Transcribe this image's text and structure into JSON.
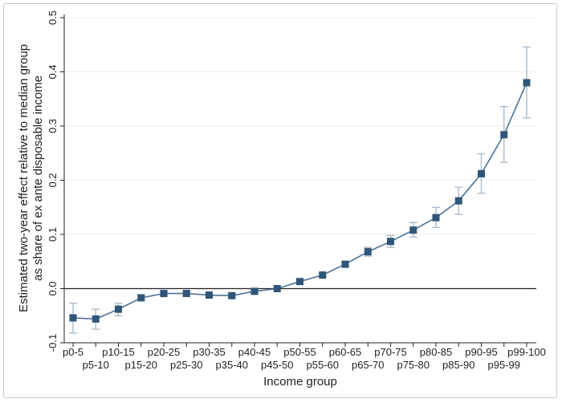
{
  "chart_data": {
    "type": "line",
    "ylabel_line1": "Estimated two-year effect relative to median group",
    "ylabel_line2": "as share of ex ante disposable income",
    "xlabel": "Income group",
    "ylim": [
      -0.1,
      0.5
    ],
    "yticks": [
      "-0.1",
      "0.0",
      "0.1",
      "0.2",
      "0.3",
      "0.4",
      "0.5"
    ],
    "ytick_values": [
      -0.1,
      0.0,
      0.1,
      0.2,
      0.3,
      0.4,
      0.5
    ],
    "grid": "horizontal",
    "reference_line": 0,
    "colors": {
      "series": "#4a7196",
      "marker": "#2f5678",
      "error_bar": "#a9bccd",
      "grid": "#e9eef2",
      "axis": "#222222"
    },
    "categories": [
      "p0-5",
      "p5-10",
      "p10-15",
      "p15-20",
      "p20-25",
      "p25-30",
      "p30-35",
      "p35-40",
      "p40-45",
      "p45-50",
      "p50-55",
      "p55-60",
      "p60-65",
      "p65-70",
      "p70-75",
      "p75-80",
      "p80-85",
      "p85-90",
      "p90-95",
      "p95-99",
      "p99-100"
    ],
    "values": [
      -0.054,
      -0.056,
      -0.038,
      -0.017,
      -0.009,
      -0.009,
      -0.012,
      -0.013,
      -0.005,
      0.0,
      0.013,
      0.025,
      0.045,
      0.068,
      0.087,
      0.108,
      0.131,
      0.162,
      0.212,
      0.284,
      0.38
    ],
    "ci_low": [
      -0.082,
      -0.075,
      -0.05,
      -0.022,
      -0.013,
      -0.013,
      -0.016,
      -0.017,
      -0.009,
      0.0,
      0.009,
      0.021,
      0.041,
      0.06,
      0.076,
      0.095,
      0.113,
      0.137,
      0.176,
      0.233,
      0.315
    ],
    "ci_high": [
      -0.027,
      -0.038,
      -0.027,
      -0.012,
      -0.005,
      -0.005,
      -0.008,
      -0.009,
      -0.001,
      0.0,
      0.017,
      0.029,
      0.049,
      0.076,
      0.098,
      0.122,
      0.15,
      0.187,
      0.249,
      0.336,
      0.446
    ]
  }
}
